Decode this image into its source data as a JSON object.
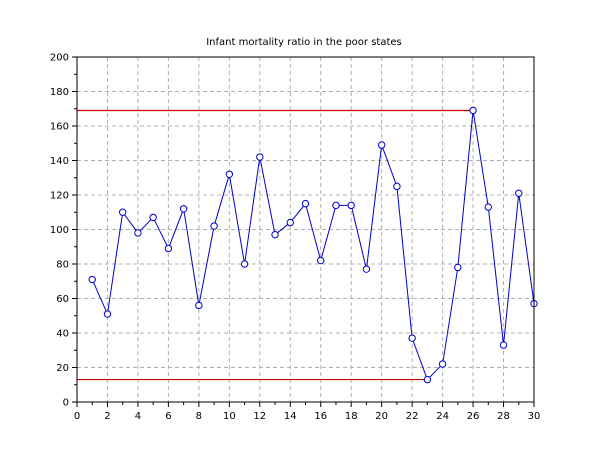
{
  "chart_data": {
    "type": "line",
    "title": "Infant mortality ratio in the poor states",
    "xlabel": "",
    "ylabel": "",
    "xlim": [
      0,
      30
    ],
    "ylim": [
      0,
      200
    ],
    "xticks": [
      0,
      2,
      4,
      6,
      8,
      10,
      12,
      14,
      16,
      18,
      20,
      22,
      24,
      26,
      28,
      30
    ],
    "yticks": [
      0,
      20,
      40,
      60,
      80,
      100,
      120,
      140,
      160,
      180,
      200
    ],
    "grid": true,
    "series": [
      {
        "color": "#0000cc",
        "marker": "circle",
        "x": [
          1,
          2,
          3,
          4,
          5,
          6,
          7,
          8,
          9,
          10,
          11,
          12,
          13,
          14,
          15,
          16,
          17,
          18,
          19,
          20,
          21,
          22,
          23,
          24,
          25,
          26,
          27,
          28,
          29,
          30
        ],
        "y": [
          71,
          51,
          110,
          98,
          107,
          89,
          112,
          56,
          102,
          132,
          80,
          142,
          97,
          104,
          115,
          82,
          114,
          114,
          77,
          149,
          125,
          37,
          13,
          22,
          78,
          169,
          113,
          33,
          121,
          57
        ]
      }
    ],
    "reference_lines": [
      {
        "color": "#cc0000",
        "y": 169,
        "x_start": 0,
        "x_end": 26
      },
      {
        "color": "#cc0000",
        "y": 13,
        "x_start": 0,
        "x_end": 23
      }
    ]
  }
}
